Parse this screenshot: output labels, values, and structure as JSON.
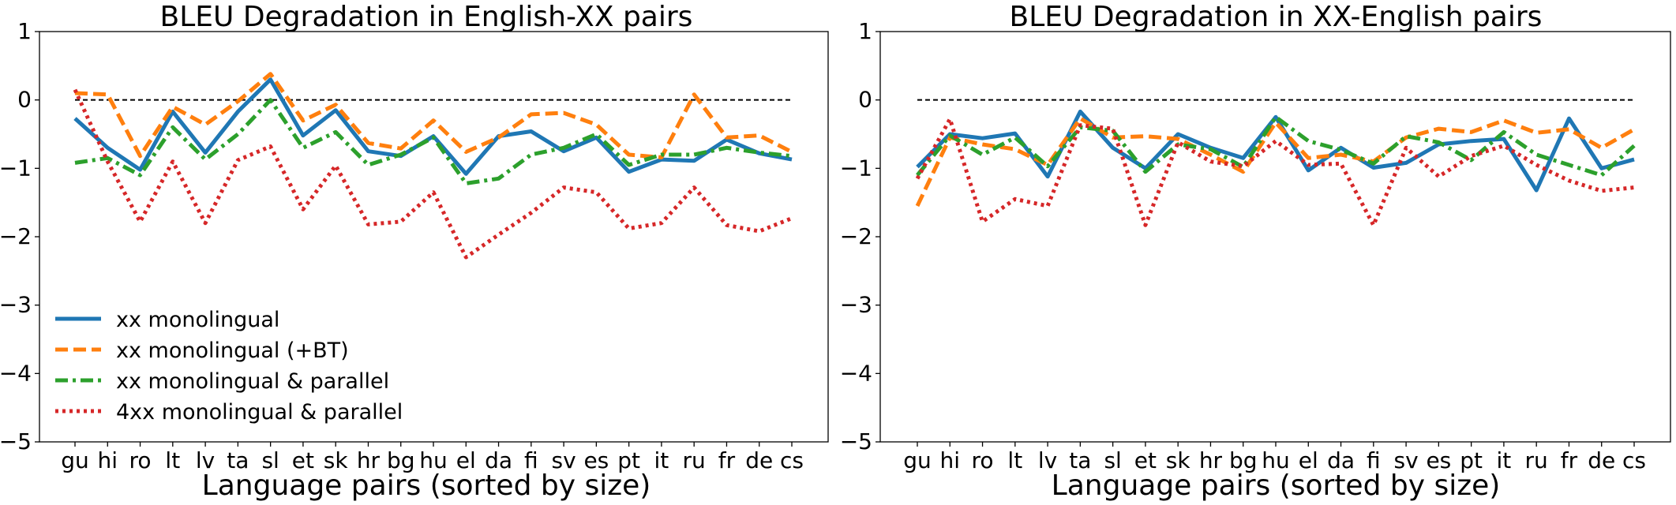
{
  "chart_data": [
    {
      "type": "line",
      "title": "BLEU Degradation in English-XX pairs",
      "xlabel": "Language pairs (sorted by size)",
      "ylabel": "",
      "ylim": [
        -5,
        1
      ],
      "yticks": [
        "1",
        "0",
        "−1",
        "−2",
        "−3",
        "−4",
        "−5"
      ],
      "grid": false,
      "legend_position": "lower-left",
      "baseline": 0,
      "categories": [
        "gu",
        "hi",
        "ro",
        "lt",
        "lv",
        "ta",
        "sl",
        "et",
        "sk",
        "hr",
        "bg",
        "hu",
        "el",
        "da",
        "fi",
        "sv",
        "es",
        "pt",
        "it",
        "ru",
        "fr",
        "de",
        "cs"
      ],
      "series": [
        {
          "name": "xx monolingual",
          "color": "#1f77b4",
          "style": "solid",
          "values": [
            -0.27,
            -0.7,
            -1.02,
            -0.17,
            -0.77,
            -0.17,
            0.3,
            -0.52,
            -0.15,
            -0.75,
            -0.82,
            -0.53,
            -1.08,
            -0.53,
            -0.46,
            -0.75,
            -0.55,
            -1.05,
            -0.87,
            -0.89,
            -0.58,
            -0.78,
            -0.87
          ]
        },
        {
          "name": "xx monolingual (+BT)",
          "color": "#ff7f0e",
          "style": "dashed",
          "values": [
            0.1,
            0.08,
            -0.82,
            -0.1,
            -0.36,
            -0.02,
            0.38,
            -0.3,
            -0.07,
            -0.63,
            -0.71,
            -0.3,
            -0.76,
            -0.55,
            -0.21,
            -0.19,
            -0.36,
            -0.8,
            -0.84,
            0.08,
            -0.55,
            -0.52,
            -0.76
          ]
        },
        {
          "name": "xx monolingual & parallel",
          "color": "#2ca02c",
          "style": "dashdot",
          "values": [
            -0.92,
            -0.85,
            -1.1,
            -0.4,
            -0.87,
            -0.5,
            0.0,
            -0.7,
            -0.47,
            -0.95,
            -0.8,
            -0.55,
            -1.22,
            -1.15,
            -0.8,
            -0.7,
            -0.5,
            -0.95,
            -0.8,
            -0.8,
            -0.7,
            -0.77,
            -0.82
          ]
        },
        {
          "name": "4xx monolingual & parallel",
          "color": "#d62728",
          "style": "dotted",
          "values": [
            0.15,
            -0.9,
            -1.78,
            -0.9,
            -1.8,
            -0.88,
            -0.68,
            -1.6,
            -0.96,
            -1.82,
            -1.78,
            -1.35,
            -2.3,
            -1.97,
            -1.65,
            -1.28,
            -1.35,
            -1.88,
            -1.8,
            -1.28,
            -1.83,
            -1.92,
            -1.73
          ]
        }
      ]
    },
    {
      "type": "line",
      "title": "BLEU Degradation in XX-English pairs",
      "xlabel": "Language pairs (sorted by size)",
      "ylabel": "",
      "ylim": [
        -5,
        1
      ],
      "yticks": [
        "1",
        "0",
        "−1",
        "−2",
        "−3",
        "−4",
        "−5"
      ],
      "grid": false,
      "legend_position": "none",
      "baseline": 0,
      "categories": [
        "gu",
        "hi",
        "ro",
        "lt",
        "lv",
        "ta",
        "sl",
        "et",
        "sk",
        "hr",
        "bg",
        "hu",
        "el",
        "da",
        "fi",
        "sv",
        "es",
        "pt",
        "it",
        "ru",
        "fr",
        "de",
        "cs"
      ],
      "series": [
        {
          "name": "xx monolingual",
          "color": "#1f77b4",
          "style": "solid",
          "values": [
            -0.98,
            -0.5,
            -0.56,
            -0.49,
            -1.12,
            -0.17,
            -0.7,
            -1.0,
            -0.5,
            -0.7,
            -0.85,
            -0.25,
            -1.03,
            -0.7,
            -0.99,
            -0.92,
            -0.65,
            -0.6,
            -0.57,
            -1.32,
            -0.27,
            -1.0,
            -0.87
          ]
        },
        {
          "name": "xx monolingual (+BT)",
          "color": "#ff7f0e",
          "style": "dashed",
          "values": [
            -1.55,
            -0.55,
            -0.65,
            -0.72,
            -0.95,
            -0.27,
            -0.55,
            -0.53,
            -0.57,
            -0.8,
            -1.05,
            -0.33,
            -0.85,
            -0.8,
            -0.9,
            -0.55,
            -0.42,
            -0.47,
            -0.3,
            -0.48,
            -0.43,
            -0.7,
            -0.43
          ]
        },
        {
          "name": "xx monolingual & parallel",
          "color": "#2ca02c",
          "style": "dashdot",
          "values": [
            -1.1,
            -0.52,
            -0.8,
            -0.55,
            -0.97,
            -0.4,
            -0.45,
            -1.05,
            -0.65,
            -0.72,
            -0.98,
            -0.25,
            -0.6,
            -0.73,
            -0.93,
            -0.53,
            -0.62,
            -0.88,
            -0.47,
            -0.8,
            -0.95,
            -1.1,
            -0.67
          ]
        },
        {
          "name": "4xx monolingual & parallel",
          "color": "#d62728",
          "style": "dotted",
          "values": [
            -1.15,
            -0.28,
            -1.78,
            -1.45,
            -1.55,
            -0.37,
            -0.42,
            -1.83,
            -0.62,
            -0.9,
            -0.97,
            -0.6,
            -0.95,
            -0.93,
            -1.83,
            -0.7,
            -1.12,
            -0.82,
            -0.67,
            -0.95,
            -1.18,
            -1.33,
            -1.28
          ]
        }
      ]
    }
  ]
}
